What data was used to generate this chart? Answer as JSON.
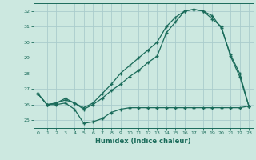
{
  "xlabel": "Humidex (Indice chaleur)",
  "background_color": "#cce8e0",
  "grid_color": "#aacccc",
  "line_color": "#1a6b5a",
  "xlim": [
    -0.5,
    23.5
  ],
  "ylim": [
    24.5,
    32.5
  ],
  "yticks": [
    25,
    26,
    27,
    28,
    29,
    30,
    31,
    32
  ],
  "xticks": [
    0,
    1,
    2,
    3,
    4,
    5,
    6,
    7,
    8,
    9,
    10,
    11,
    12,
    13,
    14,
    15,
    16,
    17,
    18,
    19,
    20,
    21,
    22,
    23
  ],
  "series1_x": [
    0,
    1,
    2,
    3,
    4,
    5,
    6,
    7,
    8,
    9,
    10,
    11,
    12,
    13,
    14,
    15,
    16,
    17,
    18,
    19,
    20,
    21,
    22,
    23
  ],
  "series1_y": [
    26.7,
    26.0,
    26.0,
    26.1,
    25.7,
    24.8,
    24.9,
    25.1,
    25.5,
    25.7,
    25.8,
    25.8,
    25.8,
    25.8,
    25.8,
    25.8,
    25.8,
    25.8,
    25.8,
    25.8,
    25.8,
    25.8,
    25.8,
    25.9
  ],
  "series2_x": [
    0,
    1,
    2,
    3,
    4,
    5,
    6,
    7,
    8,
    9,
    10,
    11,
    12,
    13,
    14,
    15,
    16,
    17,
    18,
    19,
    20,
    21,
    22,
    23
  ],
  "series2_y": [
    26.7,
    26.0,
    26.1,
    26.3,
    26.1,
    25.7,
    26.0,
    26.4,
    26.9,
    27.3,
    27.8,
    28.2,
    28.7,
    29.1,
    30.6,
    31.3,
    32.0,
    32.1,
    32.0,
    31.5,
    31.0,
    29.1,
    27.8,
    25.9
  ],
  "series3_x": [
    0,
    1,
    2,
    3,
    4,
    5,
    6,
    7,
    8,
    9,
    10,
    11,
    12,
    13,
    14,
    15,
    16,
    17,
    18,
    19,
    20,
    21,
    22,
    23
  ],
  "series3_y": [
    26.7,
    26.0,
    26.1,
    26.4,
    26.1,
    25.8,
    26.1,
    26.7,
    27.3,
    28.0,
    28.5,
    29.0,
    29.5,
    30.0,
    31.0,
    31.6,
    32.0,
    32.1,
    32.0,
    31.7,
    30.9,
    29.2,
    28.0,
    25.9
  ]
}
